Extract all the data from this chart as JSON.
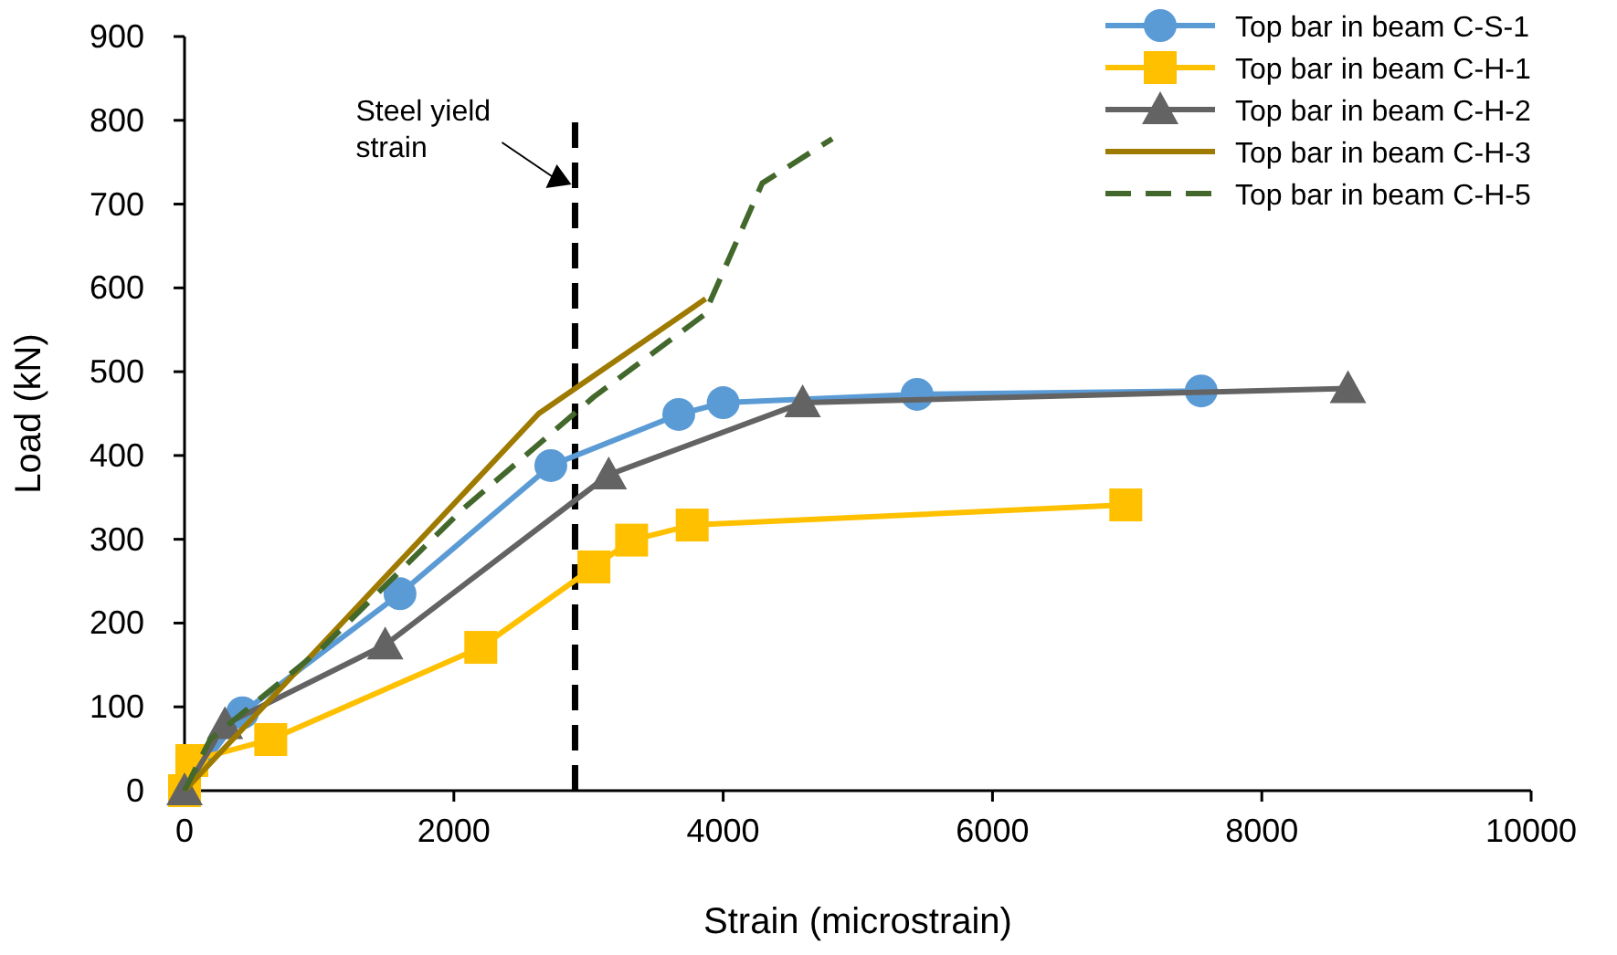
{
  "chart_data": {
    "type": "line",
    "xlabel": "Strain (microstrain)",
    "ylabel": "Load (kN)",
    "xlim": [
      0,
      10000
    ],
    "xticks": [
      0,
      2000,
      4000,
      6000,
      8000,
      10000
    ],
    "ylim": [
      0,
      900
    ],
    "yticks": [
      0,
      100,
      200,
      300,
      400,
      500,
      600,
      700,
      800,
      900
    ],
    "grid": false,
    "legend": "top right",
    "line_style": "solid",
    "series": [
      {
        "name": "Top bar in beam C-S-1",
        "color": "#5b9bd5",
        "marker": "circle",
        "x": [
          0,
          430,
          1600,
          2720,
          3670,
          4000,
          5440,
          7550
        ],
        "values": [
          0,
          93,
          235,
          388,
          449,
          463,
          473,
          477
        ]
      },
      {
        "name": "Top bar in beam C-H-1",
        "color": "#ffc000",
        "marker": "square",
        "x": [
          0,
          54,
          640,
          2200,
          3040,
          3320,
          3770,
          6990
        ],
        "values": [
          0,
          36,
          61,
          171,
          267,
          299,
          317,
          341
        ]
      },
      {
        "name": "Top bar in beam C-H-2",
        "color": "#636363",
        "marker": "triangle",
        "x": [
          0,
          300,
          1490,
          3150,
          4590,
          8640
        ],
        "values": [
          0,
          79,
          174,
          377,
          463,
          480
        ]
      },
      {
        "name": "Top bar in beam C-H-3",
        "color": "#9e7b00",
        "marker": "none",
        "x": [
          0,
          2630,
          3870
        ],
        "values": [
          0,
          450,
          587
        ]
      },
      {
        "name": "Top bar in beam C-H-5",
        "color": "#43682b",
        "line_style": "dashed",
        "x": [
          0,
          190,
          1020,
          2060,
          3040,
          3860,
          4290,
          4810
        ],
        "values": [
          0,
          61,
          170,
          335,
          470,
          568,
          725,
          778
        ]
      }
    ],
    "ref_lines": [
      {
        "axis": "x",
        "value": 2900,
        "label": "Steel yield strain",
        "color": "#000000",
        "line_style": "dashed"
      }
    ]
  }
}
